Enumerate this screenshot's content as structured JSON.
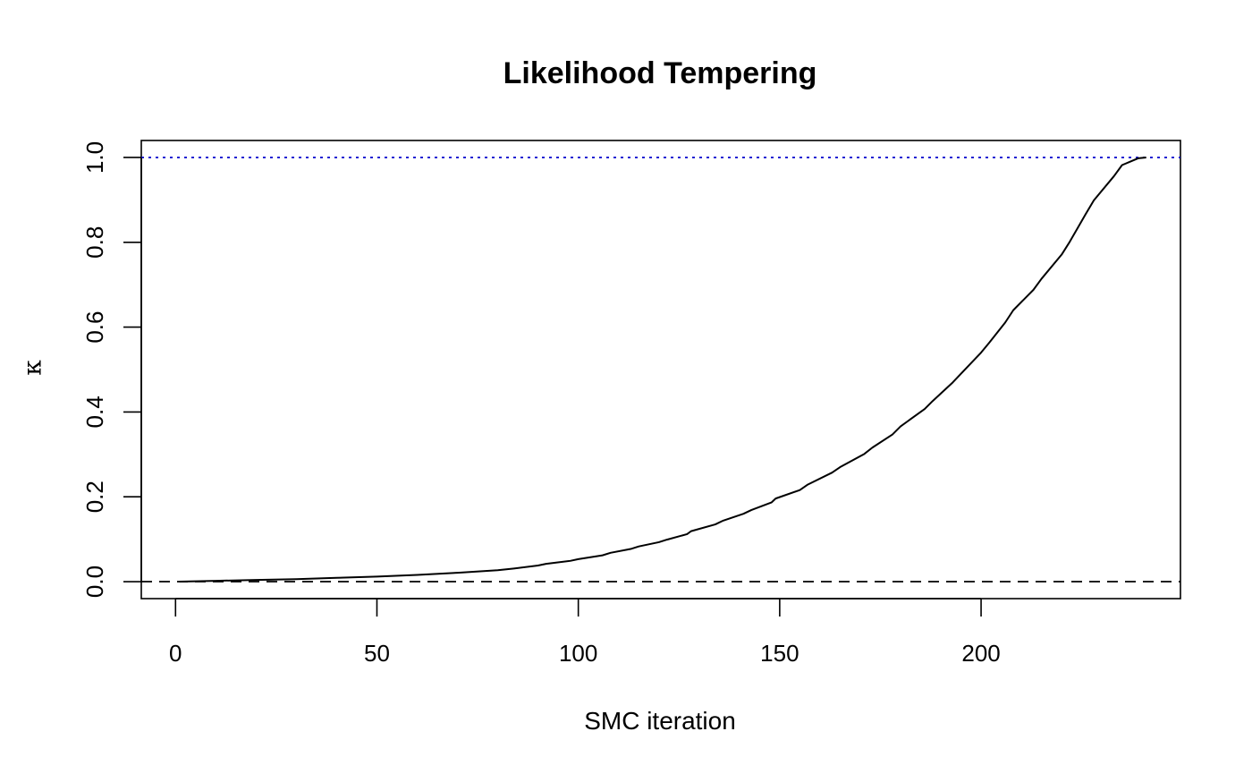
{
  "chart_data": {
    "type": "line",
    "title": "Likelihood Tempering",
    "xlabel": "SMC iteration",
    "ylabel": "κ",
    "xlim": [
      -8.5,
      249.5
    ],
    "ylim": [
      -0.04,
      1.04
    ],
    "x_ticks": [
      0,
      50,
      100,
      150,
      200
    ],
    "y_ticks": [
      0.0,
      0.2,
      0.4,
      0.6,
      0.8,
      1.0
    ],
    "x_tick_labels": [
      "0",
      "50",
      "100",
      "150",
      "200"
    ],
    "y_tick_labels": [
      "0.0",
      "0.2",
      "0.4",
      "0.6",
      "0.8",
      "1.0"
    ],
    "grid": false,
    "reference_lines": [
      {
        "y": 1.0,
        "style": "dotted",
        "color": "#0000cc"
      },
      {
        "y": 0.0,
        "style": "dashed",
        "color": "#000000"
      }
    ],
    "series": [
      {
        "color": "#000000",
        "x": [
          1,
          10,
          20,
          30,
          40,
          50,
          60,
          70,
          80,
          84,
          90,
          92,
          98,
          100,
          106,
          108,
          113,
          115,
          120,
          122,
          127,
          128,
          134,
          136,
          141,
          143,
          148,
          149,
          155,
          157,
          163,
          165,
          171,
          173,
          178,
          180,
          186,
          188,
          193,
          195,
          200,
          202,
          206,
          208,
          213,
          215,
          220,
          222,
          226,
          228,
          233,
          235,
          239,
          241
        ],
        "y": [
          0.0,
          0.002,
          0.004,
          0.006,
          0.009,
          0.012,
          0.016,
          0.021,
          0.027,
          0.031,
          0.038,
          0.042,
          0.049,
          0.053,
          0.062,
          0.068,
          0.077,
          0.083,
          0.093,
          0.099,
          0.112,
          0.119,
          0.135,
          0.144,
          0.16,
          0.169,
          0.187,
          0.196,
          0.216,
          0.229,
          0.257,
          0.27,
          0.301,
          0.316,
          0.347,
          0.366,
          0.407,
          0.426,
          0.47,
          0.49,
          0.54,
          0.563,
          0.611,
          0.64,
          0.688,
          0.714,
          0.771,
          0.801,
          0.867,
          0.899,
          0.956,
          0.982,
          0.998,
          1.0
        ]
      }
    ]
  }
}
